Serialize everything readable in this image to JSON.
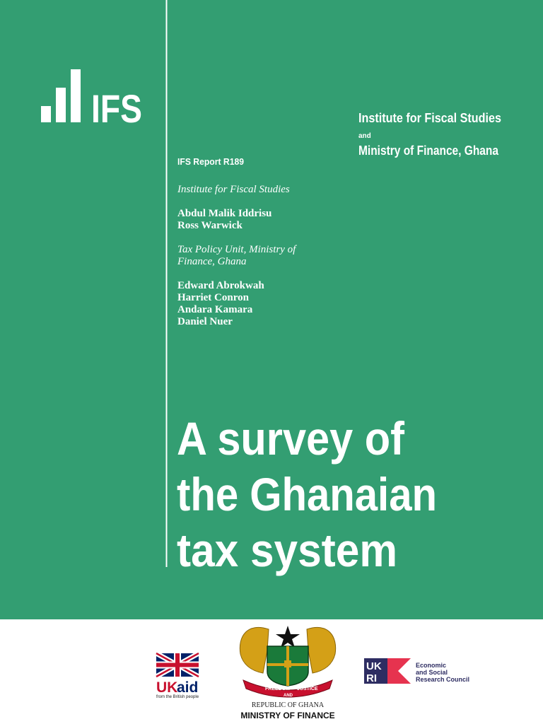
{
  "header": {
    "logo": "IFS",
    "publishers": [
      "Institute for Fiscal Studies",
      "and",
      "Ministry of Finance, Ghana"
    ],
    "report": "IFS Report R189"
  },
  "authors": [
    {
      "affiliation": [
        "Institute for Fiscal Studies"
      ],
      "names": [
        "Abdul Malik Iddrisu",
        "Ross Warwick"
      ]
    },
    {
      "affiliation": [
        "Tax Policy Unit, Ministry of",
        "Finance, Ghana"
      ],
      "names": [
        "Edward Abrokwah",
        "Harriet Conron",
        "Andara Kamara",
        "Daniel Nuer"
      ]
    }
  ],
  "title": [
    "A survey of",
    "the Ghanaian",
    "tax system"
  ],
  "footer": {
    "ukaid": {
      "uk": "UK",
      "aid": "aid",
      "tagline": "from the British people"
    },
    "ghana": {
      "motto": [
        "FREEDOM",
        "AND",
        "JUSTICE"
      ],
      "country": "REPUBLIC OF GHANA",
      "ministry": "MINISTRY OF FINANCE"
    },
    "ukri": {
      "logo": [
        "UK",
        "RI"
      ],
      "council": [
        "Economic",
        "and Social",
        "Research Council"
      ]
    }
  }
}
